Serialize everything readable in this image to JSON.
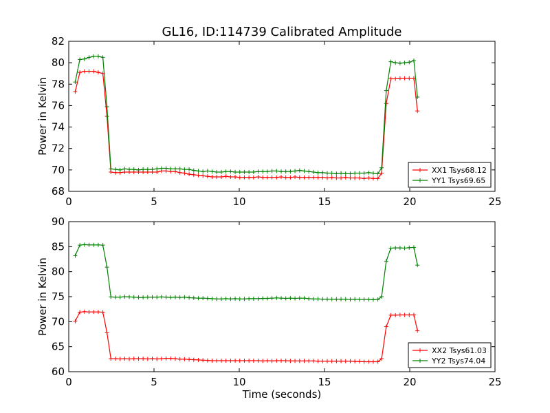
{
  "figure_title": "GL16, ID:114739 Calibrated Amplitude",
  "xlabel": "Time (seconds)",
  "chart_data": [
    {
      "type": "line",
      "ylabel": "Power in Kelvin",
      "xlim": [
        0,
        25
      ],
      "ylim": [
        68,
        82
      ],
      "xticks": [
        0,
        5,
        10,
        15,
        20,
        25
      ],
      "yticks": [
        68,
        70,
        72,
        74,
        76,
        78,
        80,
        82
      ],
      "legend_position": "lower-right",
      "series": [
        {
          "name": "XX1 Tsys68.12",
          "color": "#ff0000",
          "x": [
            0.38,
            0.65,
            0.92,
            1.19,
            1.46,
            1.73,
            2.0,
            2.24,
            2.47,
            2.74,
            3.01,
            3.28,
            3.55,
            3.82,
            4.09,
            4.36,
            4.63,
            4.9,
            5.17,
            5.44,
            5.71,
            5.98,
            6.25,
            6.52,
            6.79,
            7.06,
            7.33,
            7.6,
            7.87,
            8.14,
            8.41,
            8.68,
            8.95,
            9.22,
            9.49,
            9.76,
            10.03,
            10.3,
            10.57,
            10.84,
            11.11,
            11.38,
            11.65,
            11.92,
            12.19,
            12.46,
            12.73,
            13.0,
            13.27,
            13.54,
            13.81,
            14.08,
            14.35,
            14.62,
            14.89,
            15.16,
            15.43,
            15.7,
            15.97,
            16.24,
            16.51,
            16.78,
            17.05,
            17.32,
            17.59,
            17.86,
            18.13,
            18.35,
            18.62,
            18.89,
            19.16,
            19.43,
            19.7,
            19.97,
            20.24,
            20.45
          ],
          "y": [
            77.3,
            79.1,
            79.2,
            79.2,
            79.2,
            79.1,
            79.0,
            75.0,
            69.8,
            69.75,
            69.75,
            69.8,
            69.8,
            69.8,
            69.8,
            69.8,
            69.8,
            69.8,
            69.8,
            69.9,
            69.9,
            69.85,
            69.85,
            69.75,
            69.7,
            69.6,
            69.55,
            69.5,
            69.45,
            69.4,
            69.35,
            69.35,
            69.35,
            69.4,
            69.35,
            69.35,
            69.3,
            69.3,
            69.3,
            69.3,
            69.35,
            69.3,
            69.3,
            69.3,
            69.3,
            69.35,
            69.3,
            69.3,
            69.35,
            69.3,
            69.3,
            69.3,
            69.3,
            69.3,
            69.3,
            69.25,
            69.3,
            69.25,
            69.25,
            69.3,
            69.25,
            69.25,
            69.25,
            69.2,
            69.25,
            69.2,
            69.2,
            69.7,
            76.2,
            78.5,
            78.5,
            78.55,
            78.55,
            78.55,
            78.55,
            75.5
          ]
        },
        {
          "name": "YY1 Tsys69.65",
          "color": "#008000",
          "x": [
            0.38,
            0.65,
            0.92,
            1.19,
            1.46,
            1.73,
            2.0,
            2.24,
            2.47,
            2.74,
            3.01,
            3.28,
            3.55,
            3.82,
            4.09,
            4.36,
            4.63,
            4.9,
            5.17,
            5.44,
            5.71,
            5.98,
            6.25,
            6.52,
            6.79,
            7.06,
            7.33,
            7.6,
            7.87,
            8.14,
            8.41,
            8.68,
            8.95,
            9.22,
            9.49,
            9.76,
            10.03,
            10.3,
            10.57,
            10.84,
            11.11,
            11.38,
            11.65,
            11.92,
            12.19,
            12.46,
            12.73,
            13.0,
            13.27,
            13.54,
            13.81,
            14.08,
            14.35,
            14.62,
            14.89,
            15.16,
            15.43,
            15.7,
            15.97,
            16.24,
            16.51,
            16.78,
            17.05,
            17.32,
            17.59,
            17.86,
            18.13,
            18.35,
            18.62,
            18.89,
            19.16,
            19.43,
            19.7,
            19.97,
            20.24,
            20.45
          ],
          "y": [
            78.2,
            80.3,
            80.35,
            80.5,
            80.6,
            80.6,
            80.5,
            75.9,
            70.1,
            70.05,
            70.0,
            70.1,
            70.05,
            70.05,
            70.0,
            70.05,
            70.05,
            70.05,
            70.1,
            70.15,
            70.15,
            70.1,
            70.1,
            70.1,
            70.05,
            70.05,
            69.95,
            69.9,
            69.85,
            69.9,
            69.85,
            69.8,
            69.8,
            69.85,
            69.85,
            69.8,
            69.8,
            69.8,
            69.8,
            69.8,
            69.85,
            69.85,
            69.85,
            69.9,
            69.9,
            69.85,
            69.85,
            69.85,
            69.9,
            69.95,
            69.9,
            69.85,
            69.8,
            69.75,
            69.75,
            69.7,
            69.7,
            69.65,
            69.7,
            69.65,
            69.65,
            69.7,
            69.7,
            69.7,
            69.75,
            69.7,
            69.65,
            70.2,
            77.4,
            80.1,
            80.0,
            79.95,
            80.0,
            80.05,
            80.2,
            76.8
          ]
        }
      ]
    },
    {
      "type": "line",
      "ylabel": "Power in Kelvin",
      "xlabel": "Time (seconds)",
      "xlim": [
        0,
        25
      ],
      "ylim": [
        60,
        90
      ],
      "xticks": [
        0,
        5,
        10,
        15,
        20,
        25
      ],
      "yticks": [
        60,
        65,
        70,
        75,
        80,
        85,
        90
      ],
      "legend_position": "lower-right",
      "series": [
        {
          "name": "XX2 Tsys61.03",
          "color": "#ff0000",
          "x": [
            0.38,
            0.65,
            0.92,
            1.19,
            1.46,
            1.73,
            2.0,
            2.24,
            2.47,
            2.74,
            3.01,
            3.28,
            3.55,
            3.82,
            4.09,
            4.36,
            4.63,
            4.9,
            5.17,
            5.44,
            5.71,
            5.98,
            6.25,
            6.52,
            6.79,
            7.06,
            7.33,
            7.6,
            7.87,
            8.14,
            8.41,
            8.68,
            8.95,
            9.22,
            9.49,
            9.76,
            10.03,
            10.3,
            10.57,
            10.84,
            11.11,
            11.38,
            11.65,
            11.92,
            12.19,
            12.46,
            12.73,
            13.0,
            13.27,
            13.54,
            13.81,
            14.08,
            14.35,
            14.62,
            14.89,
            15.16,
            15.43,
            15.7,
            15.97,
            16.24,
            16.51,
            16.78,
            17.05,
            17.32,
            17.59,
            17.86,
            18.13,
            18.35,
            18.62,
            18.89,
            19.16,
            19.43,
            19.7,
            19.97,
            20.24,
            20.45
          ],
          "y": [
            70.1,
            71.9,
            72.0,
            71.95,
            71.95,
            71.95,
            71.9,
            67.8,
            62.6,
            62.6,
            62.55,
            62.6,
            62.55,
            62.6,
            62.6,
            62.6,
            62.55,
            62.6,
            62.55,
            62.6,
            62.65,
            62.65,
            62.6,
            62.5,
            62.5,
            62.45,
            62.4,
            62.35,
            62.3,
            62.25,
            62.2,
            62.2,
            62.2,
            62.2,
            62.2,
            62.2,
            62.2,
            62.2,
            62.2,
            62.2,
            62.2,
            62.15,
            62.2,
            62.15,
            62.2,
            62.2,
            62.2,
            62.15,
            62.15,
            62.15,
            62.15,
            62.15,
            62.15,
            62.1,
            62.1,
            62.1,
            62.1,
            62.1,
            62.1,
            62.1,
            62.1,
            62.05,
            62.05,
            62.0,
            62.0,
            62.0,
            62.0,
            62.6,
            69.0,
            71.3,
            71.3,
            71.35,
            71.35,
            71.35,
            71.35,
            68.2
          ]
        },
        {
          "name": "YY2 Tsys74.04",
          "color": "#008000",
          "x": [
            0.38,
            0.65,
            0.92,
            1.19,
            1.46,
            1.73,
            2.0,
            2.24,
            2.47,
            2.74,
            3.01,
            3.28,
            3.55,
            3.82,
            4.09,
            4.36,
            4.63,
            4.9,
            5.17,
            5.44,
            5.71,
            5.98,
            6.25,
            6.52,
            6.79,
            7.06,
            7.33,
            7.6,
            7.87,
            8.14,
            8.41,
            8.68,
            8.95,
            9.22,
            9.49,
            9.76,
            10.03,
            10.3,
            10.57,
            10.84,
            11.11,
            11.38,
            11.65,
            11.92,
            12.19,
            12.46,
            12.73,
            13.0,
            13.27,
            13.54,
            13.81,
            14.08,
            14.35,
            14.62,
            14.89,
            15.16,
            15.43,
            15.7,
            15.97,
            16.24,
            16.51,
            16.78,
            17.05,
            17.32,
            17.59,
            17.86,
            18.13,
            18.35,
            18.62,
            18.89,
            19.16,
            19.43,
            19.7,
            19.97,
            20.24,
            20.45
          ],
          "y": [
            83.2,
            85.3,
            85.4,
            85.35,
            85.35,
            85.35,
            85.3,
            80.9,
            74.95,
            74.9,
            74.9,
            75.0,
            74.95,
            74.9,
            74.85,
            74.85,
            74.9,
            74.9,
            74.9,
            74.95,
            74.9,
            74.85,
            74.9,
            74.85,
            74.9,
            74.8,
            74.75,
            74.7,
            74.7,
            74.65,
            74.6,
            74.55,
            74.55,
            74.6,
            74.55,
            74.6,
            74.55,
            74.55,
            74.6,
            74.6,
            74.6,
            74.65,
            74.65,
            74.7,
            74.75,
            74.7,
            74.65,
            74.7,
            74.65,
            74.7,
            74.7,
            74.6,
            74.55,
            74.55,
            74.5,
            74.5,
            74.5,
            74.5,
            74.5,
            74.5,
            74.45,
            74.5,
            74.45,
            74.45,
            74.45,
            74.4,
            74.45,
            75.0,
            82.1,
            84.7,
            84.75,
            84.75,
            84.7,
            84.8,
            84.85,
            81.3
          ]
        }
      ]
    }
  ]
}
